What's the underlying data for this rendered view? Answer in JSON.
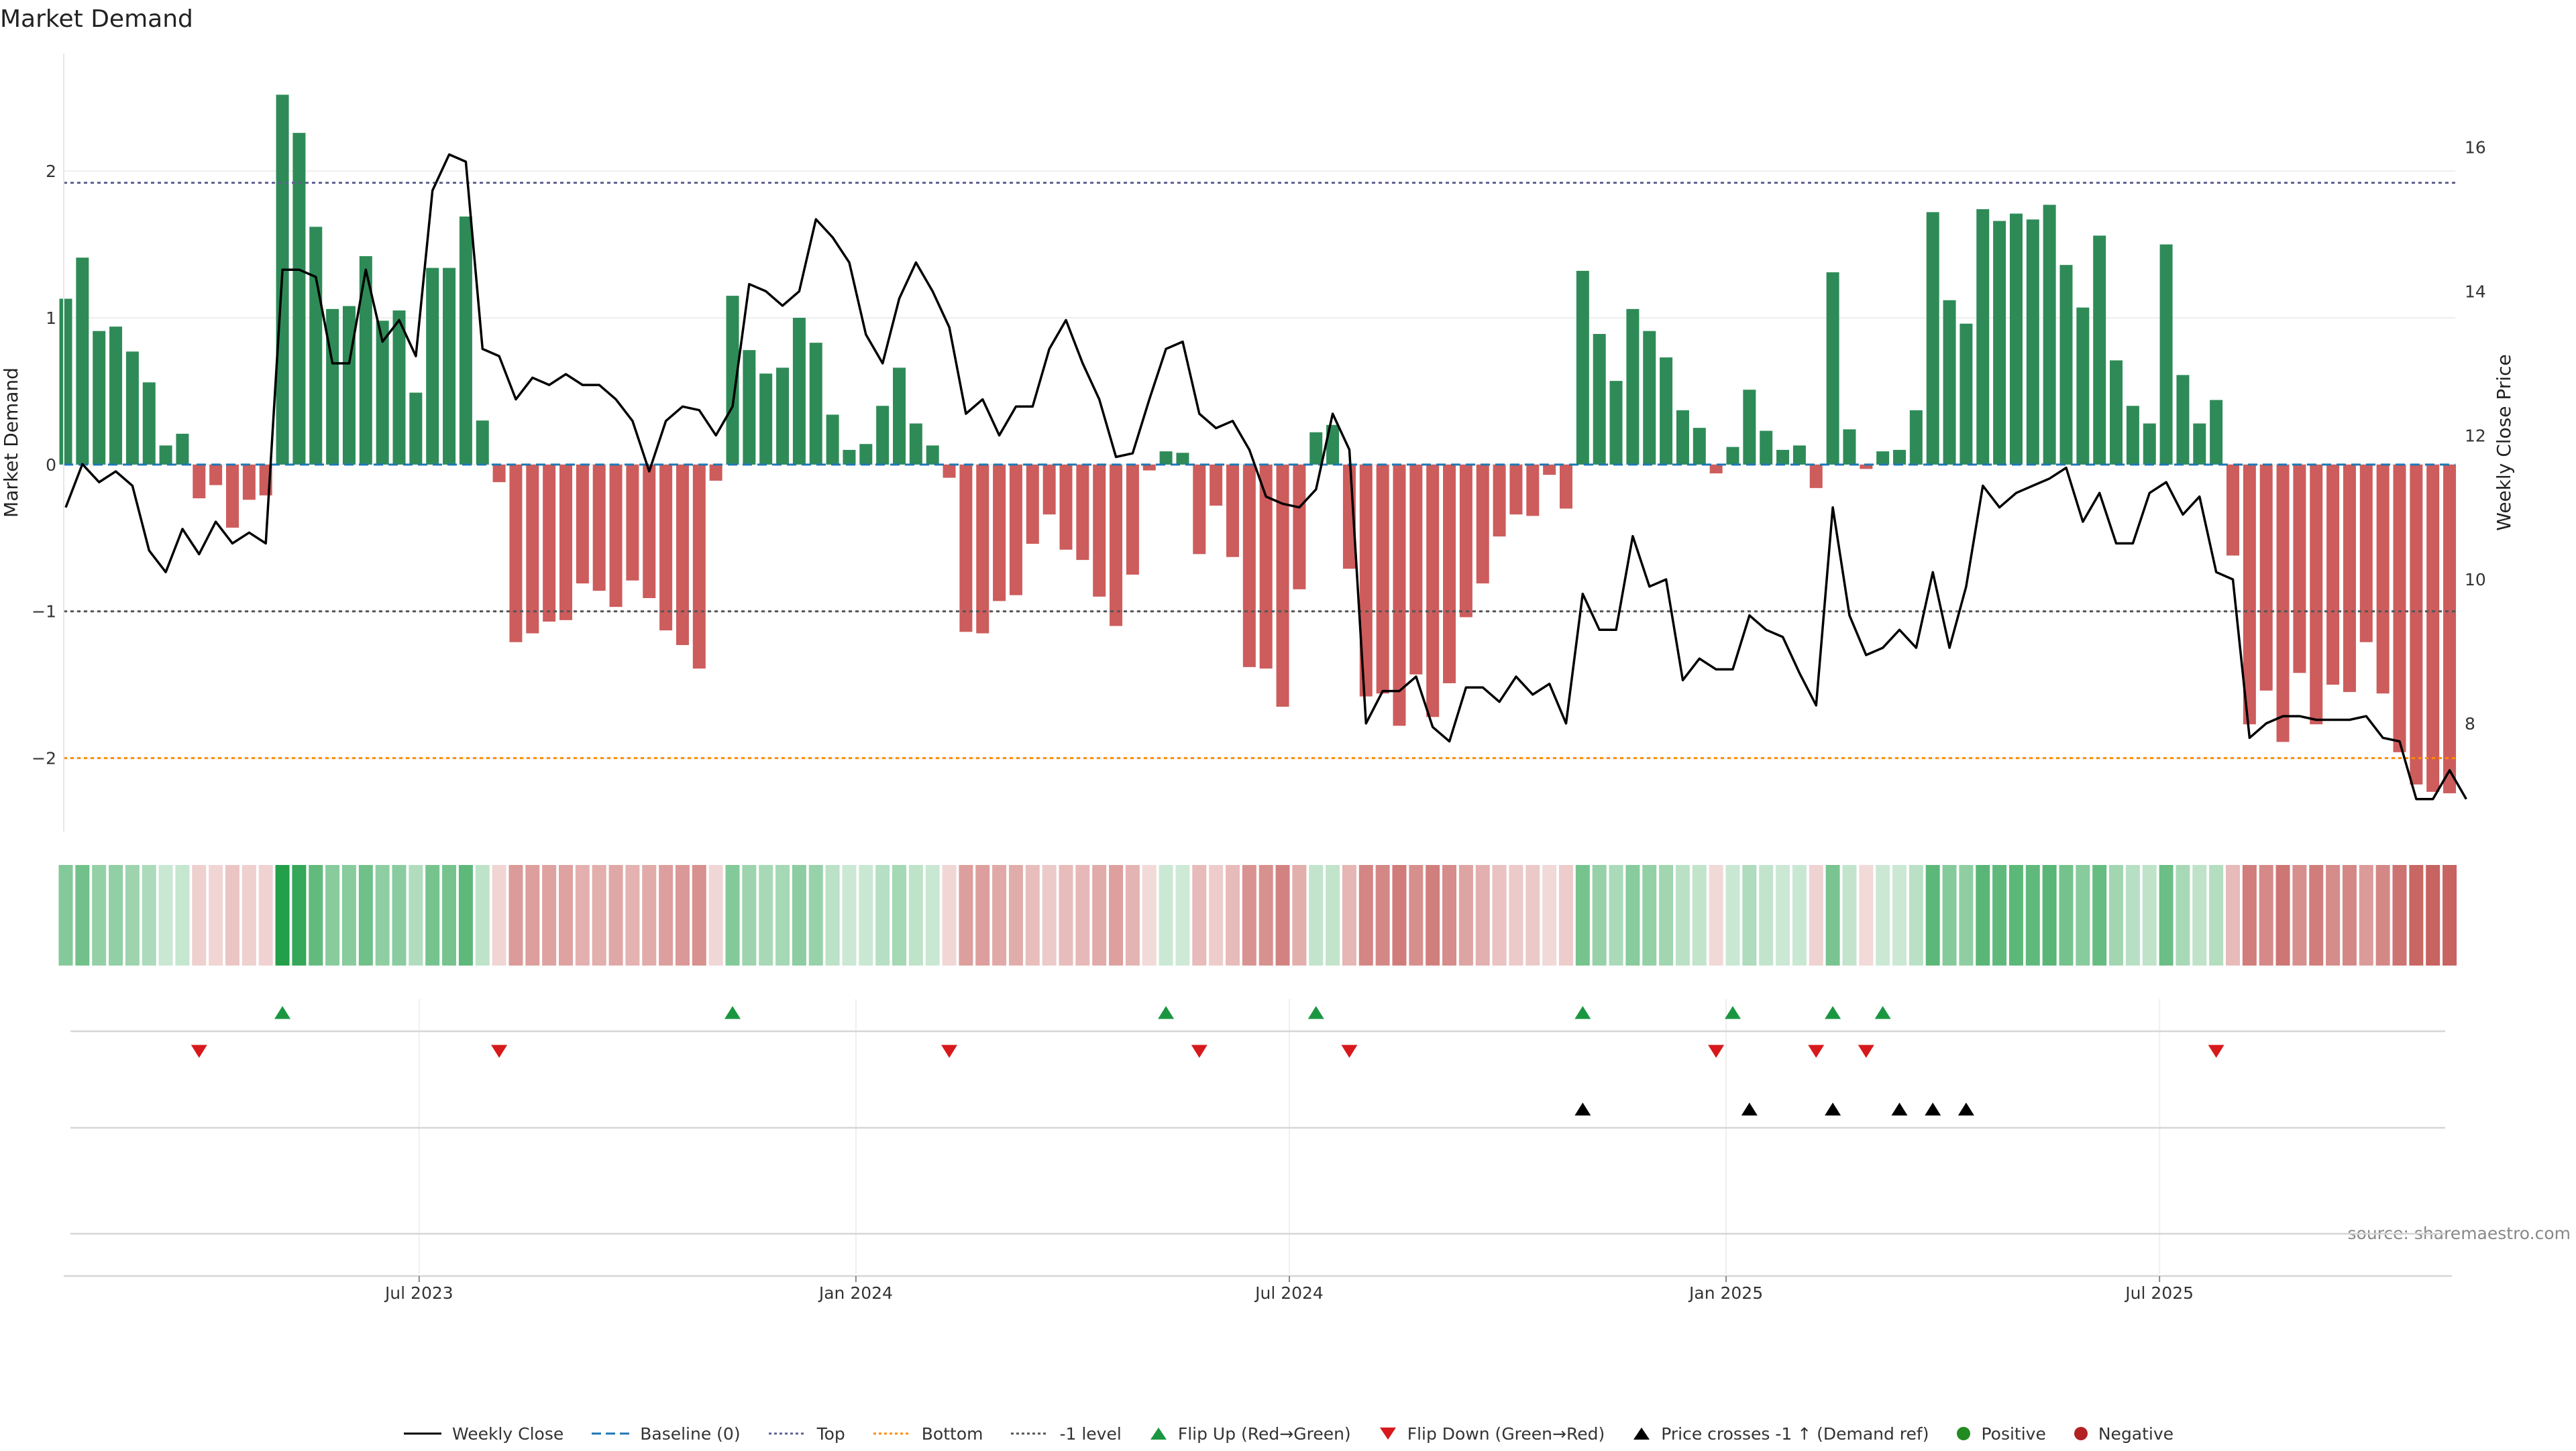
{
  "chart_data": {
    "type": "bar",
    "title": "Market Demand",
    "ylabel_left": "Market Demand",
    "ylabel_right": "Weekly Close Price",
    "source": "source: sharemaestro.com",
    "left_ylim": [
      -2.5,
      2.8
    ],
    "left_yticks": [
      -2,
      -1,
      0,
      1,
      2
    ],
    "right_ylim": [
      6.5,
      17.3
    ],
    "right_yticks": [
      8,
      10,
      12,
      14,
      16
    ],
    "levels": {
      "top": 1.92,
      "bottom": -2.0,
      "minus_one": -1.0,
      "baseline": 0
    },
    "x_start": "2023-02-13",
    "x_labels": [
      {
        "label": "Jul 2023",
        "week": 21.2
      },
      {
        "label": "Jan 2024",
        "week": 47.4
      },
      {
        "label": "Jul 2024",
        "week": 73.4
      },
      {
        "label": "Jan 2025",
        "week": 99.6
      },
      {
        "label": "Jul 2025",
        "week": 125.6
      }
    ],
    "demand": [
      1.13,
      1.41,
      0.91,
      0.94,
      0.77,
      0.56,
      0.13,
      0.21,
      -0.23,
      -0.14,
      -0.43,
      -0.24,
      -0.21,
      2.52,
      2.26,
      1.62,
      1.06,
      1.08,
      1.42,
      0.98,
      1.05,
      0.49,
      1.34,
      1.34,
      1.69,
      0.3,
      -0.12,
      -1.21,
      -1.15,
      -1.07,
      -1.06,
      -0.81,
      -0.86,
      -0.97,
      -0.79,
      -0.91,
      -1.13,
      -1.23,
      -1.39,
      -0.11,
      1.15,
      0.78,
      0.62,
      0.66,
      1.0,
      0.83,
      0.34,
      0.1,
      0.14,
      0.4,
      0.66,
      0.28,
      0.13,
      -0.09,
      -1.14,
      -1.15,
      -0.93,
      -0.89,
      -0.54,
      -0.34,
      -0.58,
      -0.65,
      -0.9,
      -1.1,
      -0.75,
      -0.04,
      0.09,
      0.08,
      -0.61,
      -0.28,
      -0.63,
      -1.38,
      -1.39,
      -1.65,
      -0.85,
      0.22,
      0.27,
      -0.71,
      -1.58,
      -1.56,
      -1.78,
      -1.43,
      -1.72,
      -1.49,
      -1.04,
      -0.81,
      -0.49,
      -0.34,
      -0.35,
      -0.07,
      -0.3,
      1.32,
      0.89,
      0.57,
      1.06,
      0.91,
      0.73,
      0.37,
      0.25,
      -0.06,
      0.12,
      0.51,
      0.23,
      0.1,
      0.13,
      -0.16,
      1.31,
      0.24,
      -0.03,
      0.09,
      0.1,
      0.37,
      1.72,
      1.12,
      0.96,
      1.74,
      1.66,
      1.71,
      1.67,
      1.77,
      1.36,
      1.07,
      1.56,
      0.71,
      0.4,
      0.28,
      1.5,
      0.61,
      0.28,
      0.44,
      -0.62,
      -1.77,
      -1.54,
      -1.89,
      -1.42,
      -1.77,
      -1.5,
      -1.55,
      -1.21,
      -1.56,
      -1.96,
      -2.18,
      -2.23,
      -2.24
    ],
    "close": [
      11.0,
      11.6,
      11.35,
      11.5,
      11.3,
      10.4,
      10.1,
      10.7,
      10.35,
      10.8,
      10.5,
      10.65,
      10.5,
      14.3,
      14.3,
      14.2,
      13.0,
      13.0,
      14.3,
      13.3,
      13.6,
      13.1,
      15.4,
      15.9,
      15.8,
      13.2,
      13.1,
      12.5,
      12.8,
      12.7,
      12.85,
      12.7,
      12.7,
      12.5,
      12.2,
      11.5,
      12.2,
      12.4,
      12.35,
      12.0,
      12.4,
      14.1,
      14.0,
      13.8,
      14.0,
      15.0,
      14.75,
      14.4,
      13.4,
      13.0,
      13.9,
      14.4,
      14.0,
      13.5,
      12.3,
      12.5,
      12.0,
      12.4,
      12.4,
      13.2,
      13.6,
      13.0,
      12.5,
      11.7,
      11.75,
      12.5,
      13.2,
      13.3,
      12.3,
      12.1,
      12.2,
      11.8,
      11.15,
      11.05,
      11.0,
      11.25,
      12.3,
      11.8,
      8.0,
      8.45,
      8.45,
      8.65,
      7.95,
      7.75,
      8.5,
      8.5,
      8.3,
      8.65,
      8.4,
      8.55,
      8.0,
      9.8,
      9.3,
      9.3,
      10.6,
      9.9,
      10.0,
      8.6,
      8.9,
      8.75,
      8.75,
      9.5,
      9.3,
      9.2,
      8.7,
      8.25,
      11.0,
      9.5,
      8.95,
      9.05,
      9.3,
      9.05,
      10.1,
      9.05,
      9.9,
      11.3,
      11.0,
      11.2,
      11.3,
      11.4,
      11.55,
      10.8,
      11.2,
      10.5,
      10.5,
      11.2,
      11.35,
      10.9,
      11.15,
      10.1,
      10.0,
      7.8,
      8.0,
      8.1,
      8.1,
      8.05,
      8.05,
      8.05,
      8.1,
      7.8,
      7.75,
      6.95,
      6.95,
      7.35,
      6.95
    ],
    "flip_up_weeks": [
      13,
      40,
      66,
      75,
      91,
      100,
      106,
      109
    ],
    "flip_down_weeks": [
      8,
      26,
      53,
      68,
      77,
      99,
      105,
      108,
      129
    ],
    "price_cross_weeks": [
      91,
      101,
      106,
      110,
      112,
      114
    ],
    "colors": {
      "positive_bar": "#2e8b57",
      "negative_bar": "#cd5c5c",
      "close_line": "#000000",
      "baseline": "#1f77b4",
      "top_level": "#606090",
      "bottom_level": "#ff8c00",
      "minus_one_level": "#555555",
      "flip_up": "#1a9641",
      "flip_down": "#d7191c",
      "price_cross": "#000000",
      "positive_dot": "#228b22",
      "negative_dot": "#b22222",
      "heat_positive": "#1f9d46",
      "heat_negative": "#c0504d"
    }
  },
  "legend": {
    "weekly_close": "Weekly Close",
    "baseline": "Baseline (0)",
    "top": "Top",
    "bottom": "Bottom",
    "minus_one": "-1 level",
    "flip_up": "Flip Up (Red→Green)",
    "flip_down": "Flip Down (Green→Red)",
    "price_cross": "Price crosses -1 ↑ (Demand ref)",
    "positive": "Positive",
    "negative": "Negative"
  }
}
